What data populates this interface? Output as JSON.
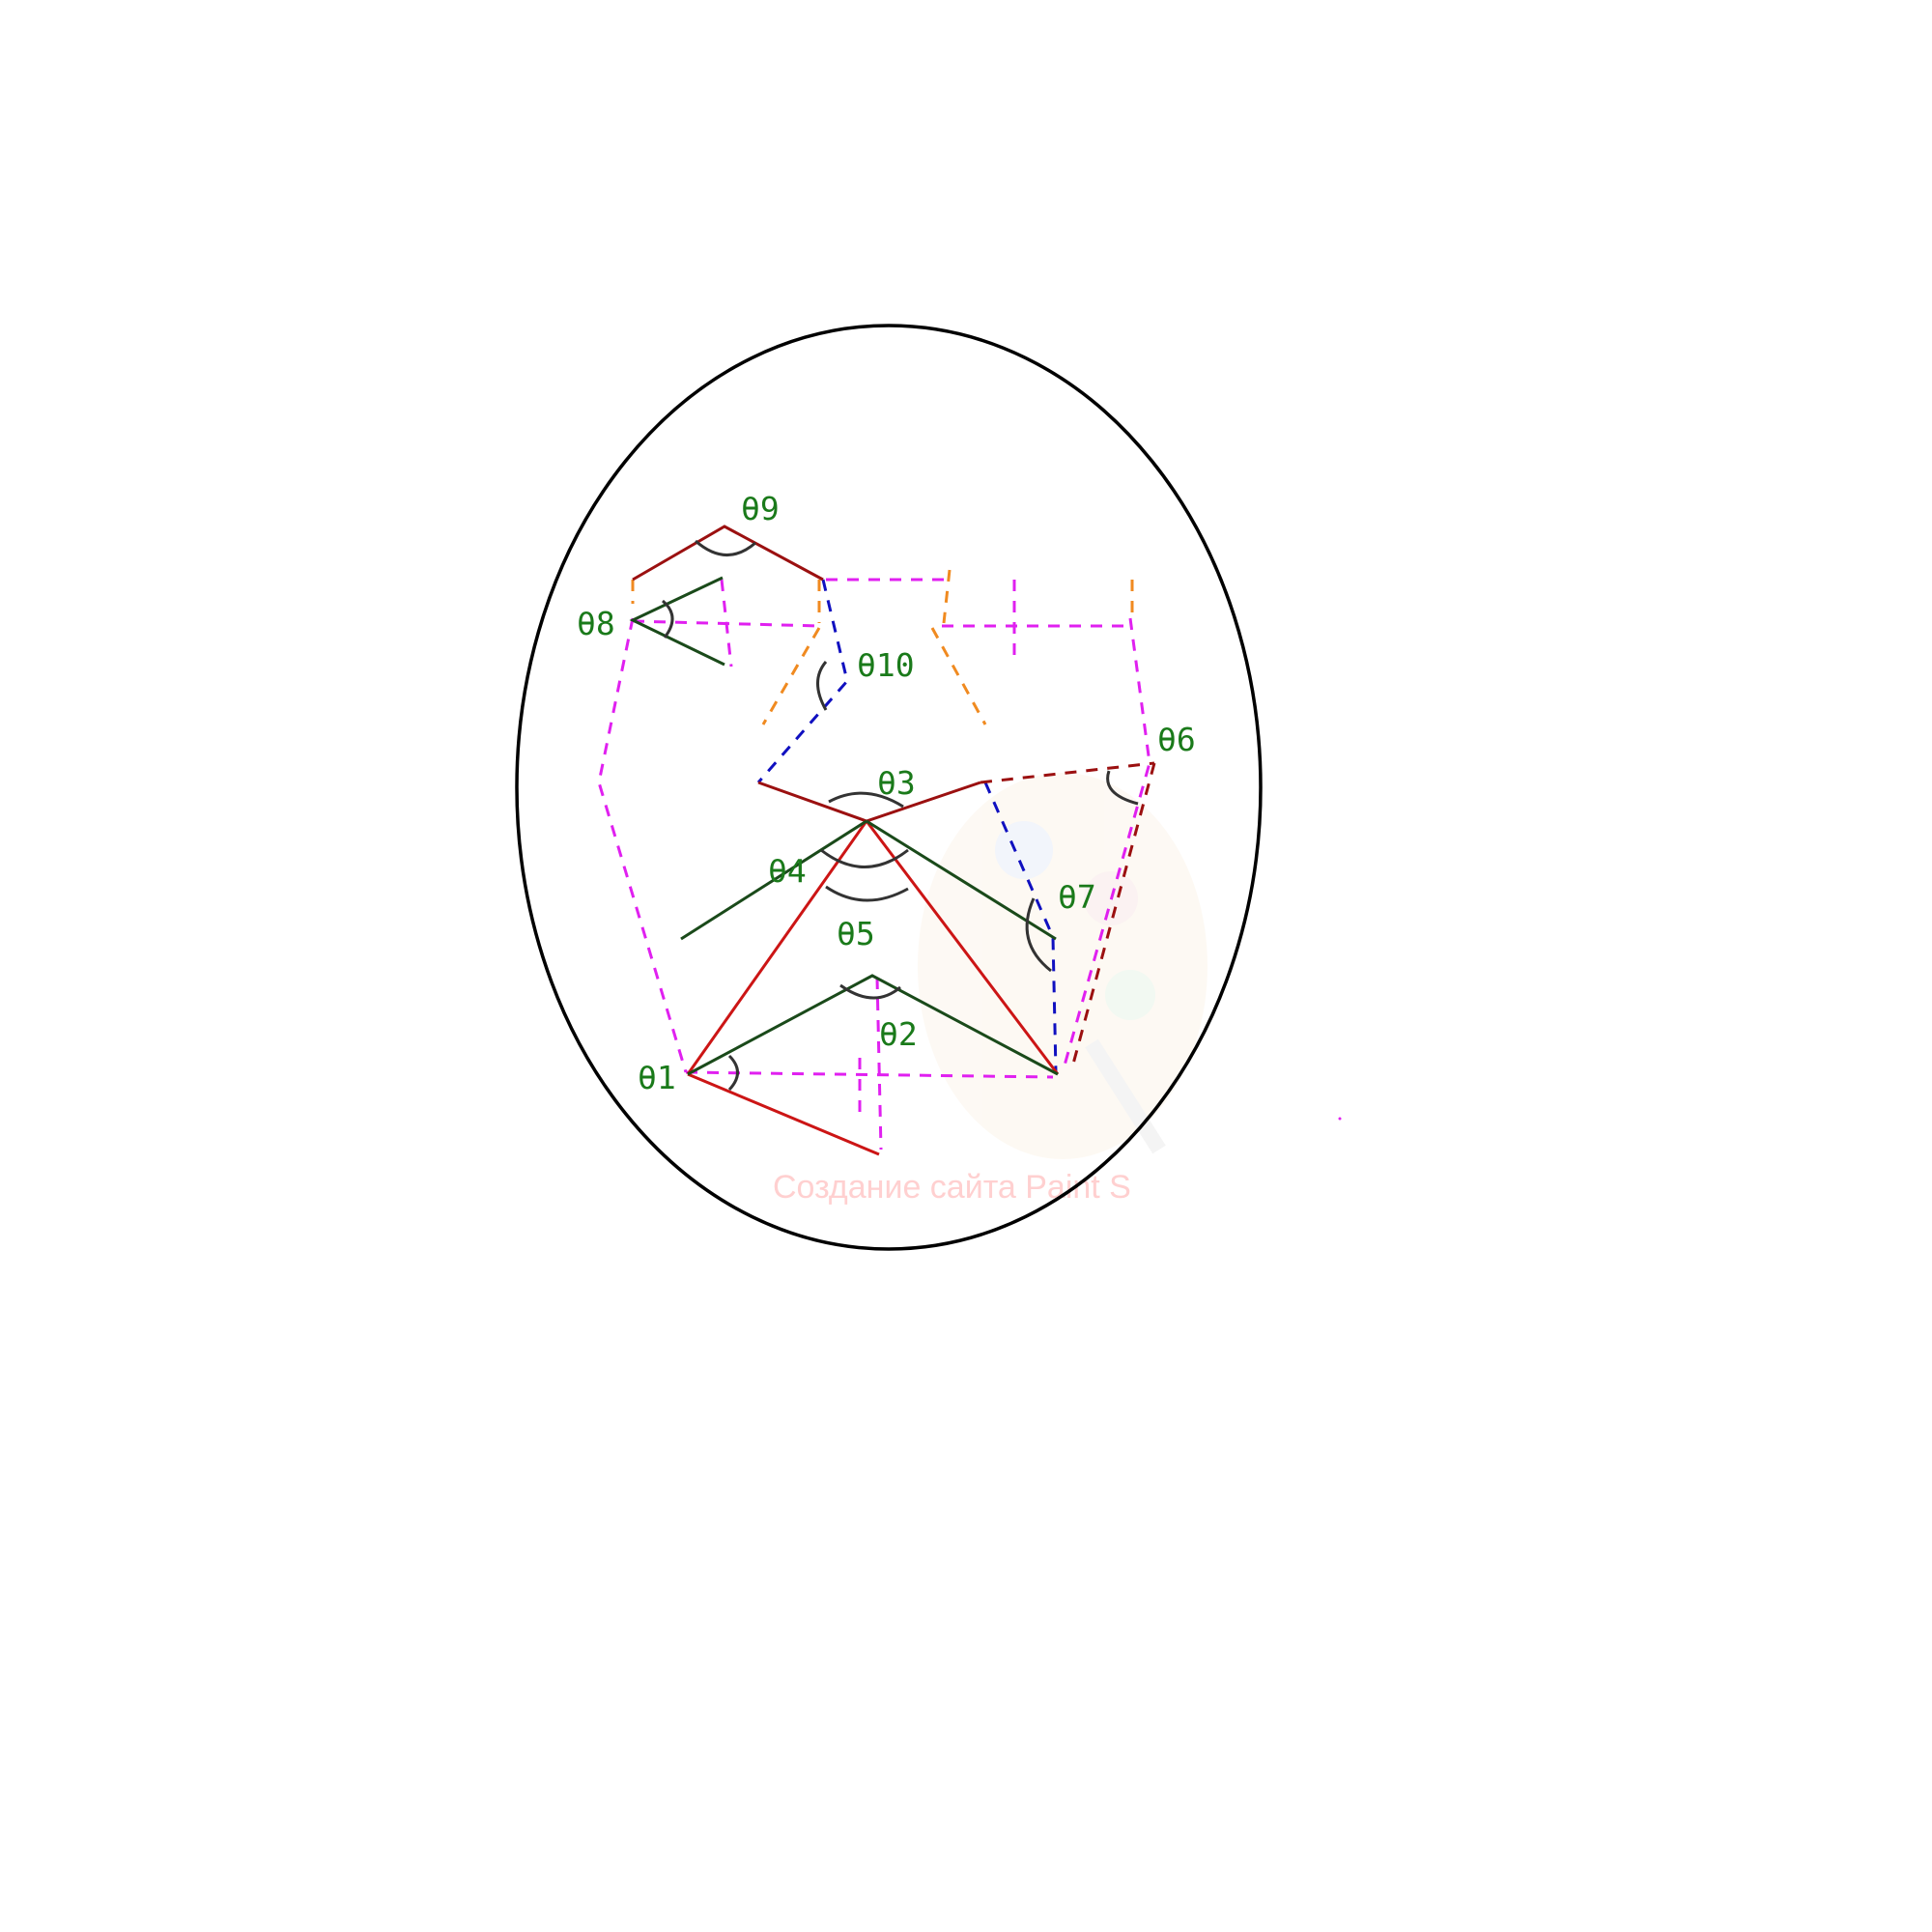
{
  "labels": {
    "theta1": "θ1",
    "theta2": "θ2",
    "theta3": "θ3",
    "theta4": "θ4",
    "theta5": "θ5",
    "theta6": "θ6",
    "theta7": "θ7",
    "theta8": "θ8",
    "theta9": "θ9",
    "theta10": "θ10"
  },
  "watermark": "Создание сайта Paint S",
  "colors": {
    "outline": "#000000",
    "dark_red": "#9b1010",
    "red": "#cc1515",
    "dark_green": "#1a4a1a",
    "magenta": "#e020f0",
    "orange": "#f08a20",
    "blue": "#1010c0",
    "label_green": "#1a7a1a",
    "arc": "#333333"
  }
}
